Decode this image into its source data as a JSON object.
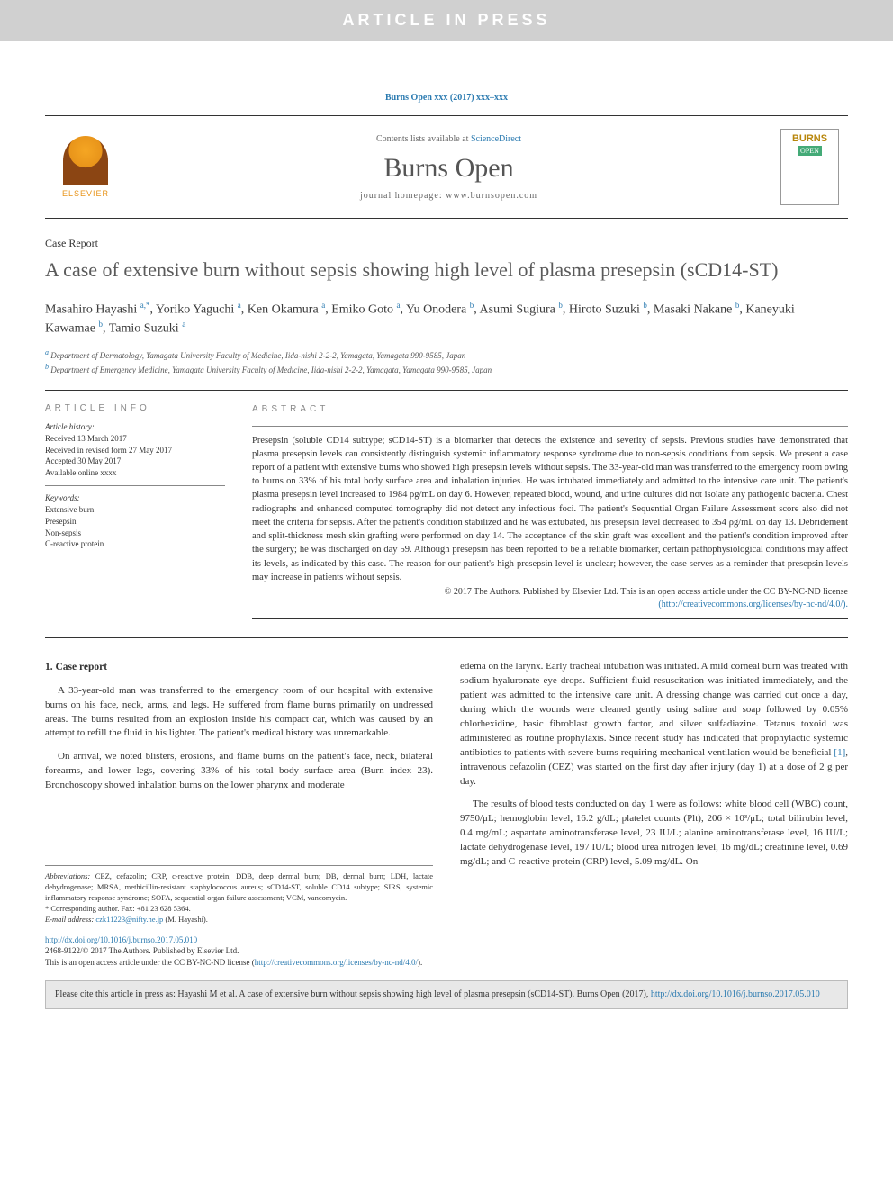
{
  "banner": "ARTICLE IN PRESS",
  "citationTop": "Burns Open xxx (2017) xxx–xxx",
  "header": {
    "contentsPrefix": "Contents lists available at ",
    "contentsLink": "ScienceDirect",
    "journalName": "Burns Open",
    "homepagePrefix": "journal homepage: ",
    "homepage": "www.burnsopen.com",
    "elsevier": "ELSEVIER",
    "coverTitle": "BURNS",
    "coverSub": "OPEN"
  },
  "articleType": "Case Report",
  "title": "A case of extensive burn without sepsis showing high level of plasma presepsin (sCD14-ST)",
  "authorsHtml": "Masahiro Hayashi <sup>a,</sup><sup class='star'>*</sup>, Yoriko Yaguchi <sup>a</sup>, Ken Okamura <sup>a</sup>, Emiko Goto <sup>a</sup>, Yu Onodera <sup>b</sup>, Asumi Sugiura <sup>b</sup>, Hiroto Suzuki <sup>b</sup>, Masaki Nakane <sup>b</sup>, Kaneyuki Kawamae <sup>b</sup>, Tamio Suzuki <sup>a</sup>",
  "affiliations": [
    {
      "sup": "a",
      "text": "Department of Dermatology, Yamagata University Faculty of Medicine, Iida-nishi 2-2-2, Yamagata, Yamagata 990-9585, Japan"
    },
    {
      "sup": "b",
      "text": "Department of Emergency Medicine, Yamagata University Faculty of Medicine, Iida-nishi 2-2-2, Yamagata, Yamagata 990-9585, Japan"
    }
  ],
  "info": {
    "head": "ARTICLE INFO",
    "historyLabel": "Article history:",
    "history": [
      "Received 13 March 2017",
      "Received in revised form 27 May 2017",
      "Accepted 30 May 2017",
      "Available online xxxx"
    ],
    "keywordsLabel": "Keywords:",
    "keywords": [
      "Extensive burn",
      "Presepsin",
      "Non-sepsis",
      "C-reactive protein"
    ]
  },
  "abstract": {
    "head": "ABSTRACT",
    "text": "Presepsin (soluble CD14 subtype; sCD14-ST) is a biomarker that detects the existence and severity of sepsis. Previous studies have demonstrated that plasma presepsin levels can consistently distinguish systemic inflammatory response syndrome due to non-sepsis conditions from sepsis. We present a case report of a patient with extensive burns who showed high presepsin levels without sepsis. The 33-year-old man was transferred to the emergency room owing to burns on 33% of his total body surface area and inhalation injuries. He was intubated immediately and admitted to the intensive care unit. The patient's plasma presepsin level increased to 1984 ρg/mL on day 6. However, repeated blood, wound, and urine cultures did not isolate any pathogenic bacteria. Chest radiographs and enhanced computed tomography did not detect any infectious foci. The patient's Sequential Organ Failure Assessment score also did not meet the criteria for sepsis. After the patient's condition stabilized and he was extubated, his presepsin level decreased to 354 ρg/mL on day 13. Debridement and split-thickness mesh skin grafting were performed on day 14. The acceptance of the skin graft was excellent and the patient's condition improved after the surgery; he was discharged on day 59. Although presepsin has been reported to be a reliable biomarker, certain pathophysiological conditions may affect its levels, as indicated by this case. The reason for our patient's high presepsin level is unclear; however, the case serves as a reminder that presepsin levels may increase in patients without sepsis.",
    "copyright": "© 2017 The Authors. Published by Elsevier Ltd. This is an open access article under the CC BY-NC-ND license",
    "licenseUrl": "(http://creativecommons.org/licenses/by-nc-nd/4.0/)."
  },
  "body": {
    "heading": "1. Case report",
    "leftParas": [
      "A 33-year-old man was transferred to the emergency room of our hospital with extensive burns on his face, neck, arms, and legs. He suffered from flame burns primarily on undressed areas. The burns resulted from an explosion inside his compact car, which was caused by an attempt to refill the fluid in his lighter. The patient's medical history was unremarkable.",
      "On arrival, we noted blisters, erosions, and flame burns on the patient's face, neck, bilateral forearms, and lower legs, covering 33% of his total body surface area (Burn index 23). Bronchoscopy showed inhalation burns on the lower pharynx and moderate"
    ],
    "rightParas": [
      "edema on the larynx. Early tracheal intubation was initiated. A mild corneal burn was treated with sodium hyaluronate eye drops. Sufficient fluid resuscitation was initiated immediately, and the patient was admitted to the intensive care unit. A dressing change was carried out once a day, during which the wounds were cleaned gently using saline and soap followed by 0.05% chlorhexidine, basic fibroblast growth factor, and silver sulfadiazine. Tetanus toxoid was administered as routine prophylaxis. Since recent study has indicated that prophylactic systemic antibiotics to patients with severe burns requiring mechanical ventilation would be beneficial [1], intravenous cefazolin (CEZ) was started on the first day after injury (day 1) at a dose of 2 g per day.",
      "The results of blood tests conducted on day 1 were as follows: white blood cell (WBC) count, 9750/μL; hemoglobin level, 16.2 g/dL; platelet counts (Plt), 206 × 10³/μL; total bilirubin level, 0.4 mg/mL; aspartate aminotransferase level, 23 IU/L; alanine aminotransferase level, 16 IU/L; lactate dehydrogenase level, 197 IU/L; blood urea nitrogen level, 16 mg/dL; creatinine level, 0.69 mg/dL; and C-reactive protein (CRP) level, 5.09 mg/dL. On"
    ]
  },
  "footnotes": {
    "abbrevLabel": "Abbreviations:",
    "abbrev": " CEZ, cefazolin; CRP, c-reactive protein; DDB, deep dermal burn; DB, dermal burn; LDH, lactate dehydrogenase; MRSA, methicillin-resistant staphylococcus aureus; sCD14-ST, soluble CD14 subtype; SIRS, systemic inflammatory response syndrome; SOFA, sequential organ failure assessment; VCM, vancomycin.",
    "corrLabel": "* Corresponding author. Fax: +81 23 628 5364.",
    "emailLabel": "E-mail address: ",
    "email": "czk11223@nifty.ne.jp",
    "emailSuffix": " (M. Hayashi)."
  },
  "doi": {
    "link": "http://dx.doi.org/10.1016/j.burnso.2017.05.010",
    "issn": "2468-9122/© 2017 The Authors. Published by Elsevier Ltd.",
    "license": "This is an open access article under the CC BY-NC-ND license (",
    "licenseUrl": "http://creativecommons.org/licenses/by-nc-nd/4.0/",
    "licenseClose": ")."
  },
  "citeBox": {
    "text": "Please cite this article in press as: Hayashi M et al. A case of extensive burn without sepsis showing high level of plasma presepsin (sCD14-ST). Burns Open (2017), ",
    "link": "http://dx.doi.org/10.1016/j.burnso.2017.05.010"
  },
  "colors": {
    "bannerBg": "#d0d0d0",
    "link": "#2a7ab0",
    "headingGray": "#5a5a5a"
  }
}
